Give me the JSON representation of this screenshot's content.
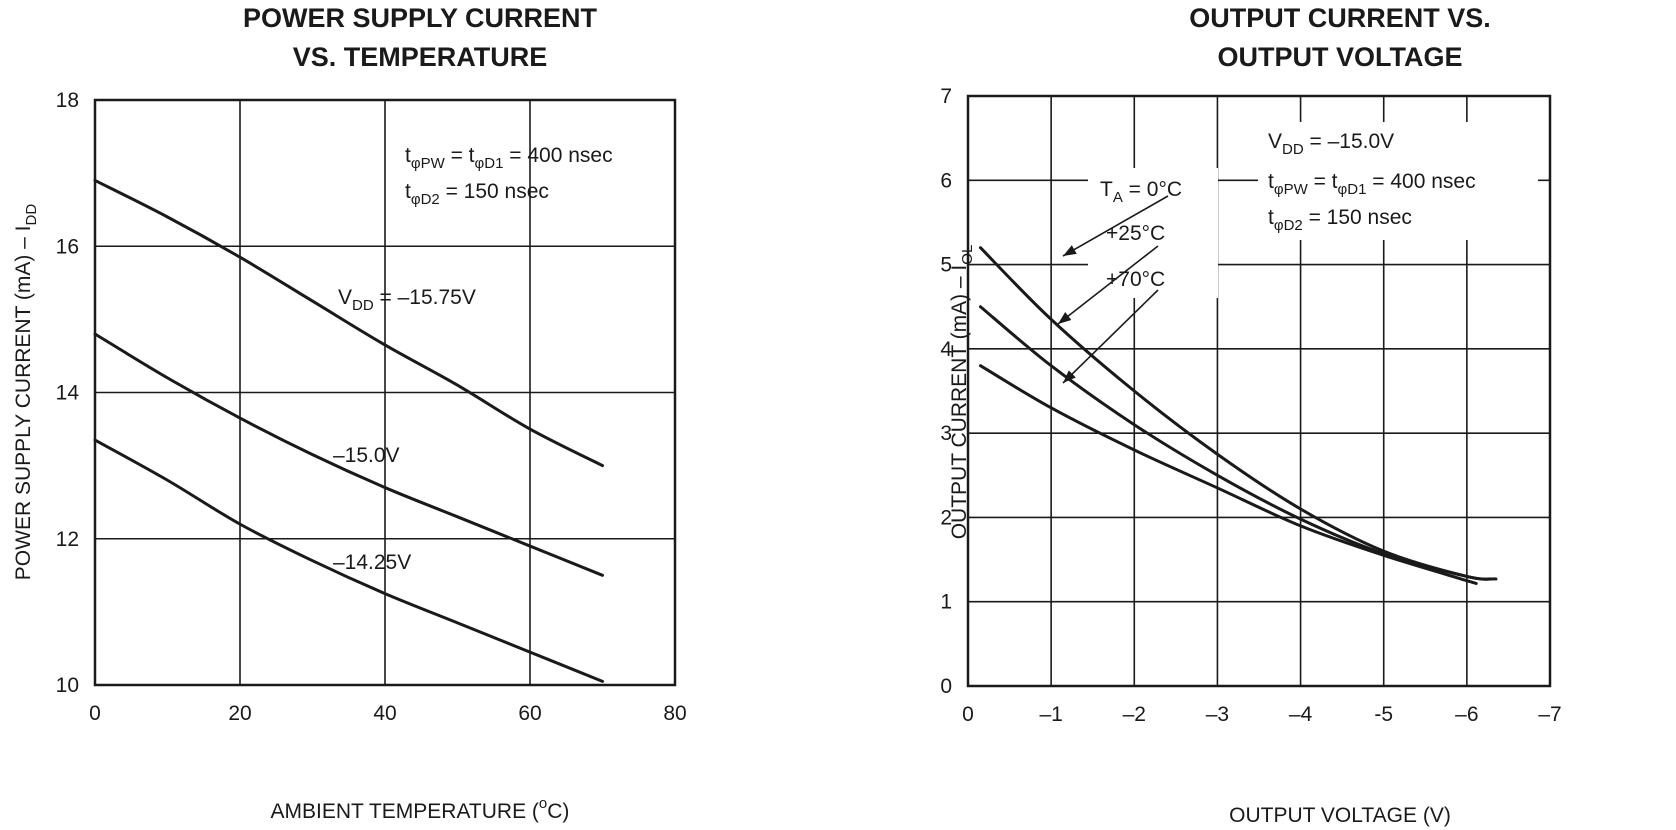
{
  "chart_data": [
    {
      "type": "line",
      "title_lines": [
        "POWER SUPPLY CURRENT",
        "VS. TEMPERATURE"
      ],
      "xlabel": {
        "text": "AMBIENT TEMPERATURE (",
        "sup": "o",
        "tail": "C)"
      },
      "ylabel": {
        "text": "POWER SUPPLY CURRENT (mA) – I",
        "sub": "DD"
      },
      "xlim": [
        0,
        80
      ],
      "ylim": [
        10,
        18
      ],
      "x_ticks": [
        0,
        20,
        40,
        60,
        80
      ],
      "x_tick_labels": [
        "0",
        "20",
        "40",
        "60",
        "80"
      ],
      "y_ticks": [
        10,
        12,
        14,
        16,
        18
      ],
      "y_tick_labels": [
        "10",
        "12",
        "14",
        "16",
        "18"
      ],
      "grid": true,
      "conditions": {
        "line1": {
          "a": "t",
          "a_sub": "φPW",
          "b": " = t",
          "b_sub": "φD1",
          "c": " = 400 nsec"
        },
        "line2": {
          "a": "t",
          "a_sub": "φD2",
          "b": " = 150 nsec"
        }
      },
      "series": [
        {
          "name": "V_DD = −15.75V",
          "label": {
            "main": "V",
            "sub": "DD",
            "tail": " = –15.75V"
          },
          "x": [
            0,
            10,
            20,
            30,
            40,
            50,
            60,
            70
          ],
          "y": [
            16.9,
            16.4,
            15.85,
            15.25,
            14.65,
            14.1,
            13.5,
            13.0
          ]
        },
        {
          "name": "−15.0V",
          "label": {
            "main": "–15.0V"
          },
          "x": [
            0,
            10,
            20,
            30,
            40,
            50,
            60,
            70
          ],
          "y": [
            14.8,
            14.2,
            13.65,
            13.15,
            12.7,
            12.3,
            11.9,
            11.5
          ]
        },
        {
          "name": "−14.25V",
          "label": {
            "main": "–14.25V"
          },
          "x": [
            0,
            10,
            20,
            30,
            40,
            50,
            60,
            70
          ],
          "y": [
            13.35,
            12.8,
            12.2,
            11.7,
            11.25,
            10.85,
            10.45,
            10.05
          ]
        }
      ]
    },
    {
      "type": "line",
      "title_lines": [
        "OUTPUT CURRENT VS.",
        "OUTPUT VOLTAGE"
      ],
      "xlabel": {
        "text": "OUTPUT VOLTAGE (V)"
      },
      "ylabel": {
        "text": "OUTPUT CURRENT (mA) – I",
        "sub": "OL"
      },
      "xlim": [
        0,
        -7
      ],
      "ylim": [
        0,
        7
      ],
      "x_ticks": [
        0,
        -1,
        -2,
        -3,
        -4,
        -5,
        -6,
        -7
      ],
      "x_tick_labels": [
        "0",
        "–1",
        "–2",
        "–3",
        "–4",
        "-5",
        "–6",
        "–7"
      ],
      "y_ticks": [
        0,
        1,
        2,
        3,
        4,
        5,
        6,
        7
      ],
      "y_tick_labels": [
        "0",
        "1",
        "2",
        "3",
        "4",
        "5",
        "6",
        "7"
      ],
      "grid": true,
      "conditions": {
        "vdd": {
          "main": "V",
          "sub": "DD",
          "tail": " = –15.0V"
        },
        "line1": {
          "a": "t",
          "a_sub": "φPW",
          "b": " = t",
          "b_sub": "φD1",
          "c": " = 400 nsec"
        },
        "line2": {
          "a": "t",
          "a_sub": "φD2",
          "b": " = 150 nsec"
        }
      },
      "series": [
        {
          "name": "T_A = 0°C",
          "label": {
            "main": "T",
            "sub": "A",
            "tail": " = 0°C"
          },
          "x": [
            -0.15,
            -1,
            -2,
            -3,
            -4,
            -5,
            -6,
            -6.35
          ],
          "y": [
            5.2,
            4.35,
            3.5,
            2.75,
            2.1,
            1.6,
            1.3,
            1.27
          ]
        },
        {
          "name": "+25°C",
          "label": {
            "main": "+25°C"
          },
          "x": [
            -0.15,
            -1,
            -2,
            -3,
            -4,
            -5,
            -6,
            -6.3
          ],
          "y": [
            4.5,
            3.8,
            3.1,
            2.5,
            1.98,
            1.57,
            1.3,
            1.27
          ]
        },
        {
          "name": "+70°C",
          "label": {
            "main": "+70°C"
          },
          "x": [
            -0.15,
            -1,
            -2,
            -3,
            -4,
            -5,
            -6,
            -6.1
          ],
          "y": [
            3.8,
            3.3,
            2.8,
            2.35,
            1.9,
            1.55,
            1.25,
            1.22
          ]
        }
      ]
    }
  ]
}
